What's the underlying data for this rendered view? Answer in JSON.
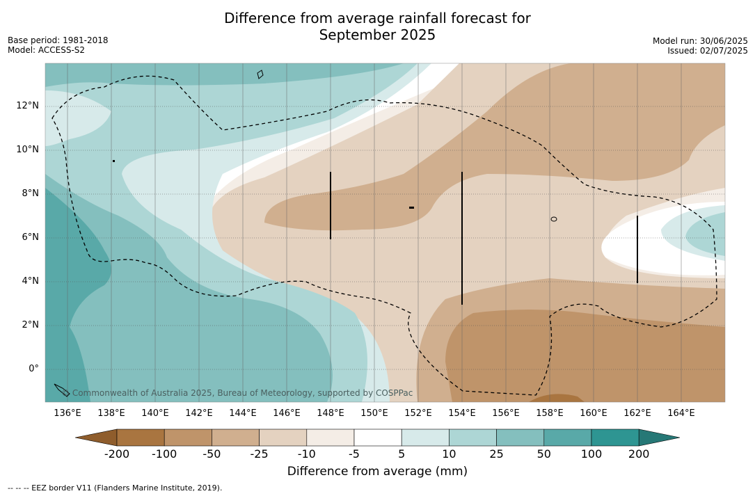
{
  "title_line1": "Difference from average rainfall forecast for",
  "title_line2": "September 2025",
  "base_period": "Base period: 1981-2018",
  "model": "Model: ACCESS-S2",
  "model_run": "Model run: 30/06/2025",
  "issued": "Issued: 02/07/2025",
  "copyright": "© Commonwealth of Australia 2025, Bureau of Meteorology, supported by COSPPac",
  "footnote": "--  --  -- EEZ border V11 (Flanders Marine Institute, 2019).",
  "lat_labels": [
    "12°N",
    "10°N",
    "8°N",
    "6°N",
    "4°N",
    "2°N",
    "0°"
  ],
  "lon_labels": [
    "136°E",
    "138°E",
    "140°E",
    "142°E",
    "144°E",
    "146°E",
    "148°E",
    "150°E",
    "152°E",
    "154°E",
    "156°E",
    "158°E",
    "160°E",
    "162°E",
    "164°E"
  ],
  "colorbar": {
    "title": "Difference from average (mm)",
    "ticks": [
      "-200",
      "-100",
      "-50",
      "-25",
      "-10",
      "-5",
      "5",
      "10",
      "25",
      "50",
      "100",
      "200"
    ],
    "colors": [
      "#a97540",
      "#bf946a",
      "#d0af8f",
      "#e4d2c0",
      "#f4ede6",
      "#ffffff",
      "#d7eaea",
      "#add6d5",
      "#84bfbe",
      "#59a9a8",
      "#2e9592"
    ],
    "under_color": "#8f5d2c",
    "over_color": "#267876"
  }
}
